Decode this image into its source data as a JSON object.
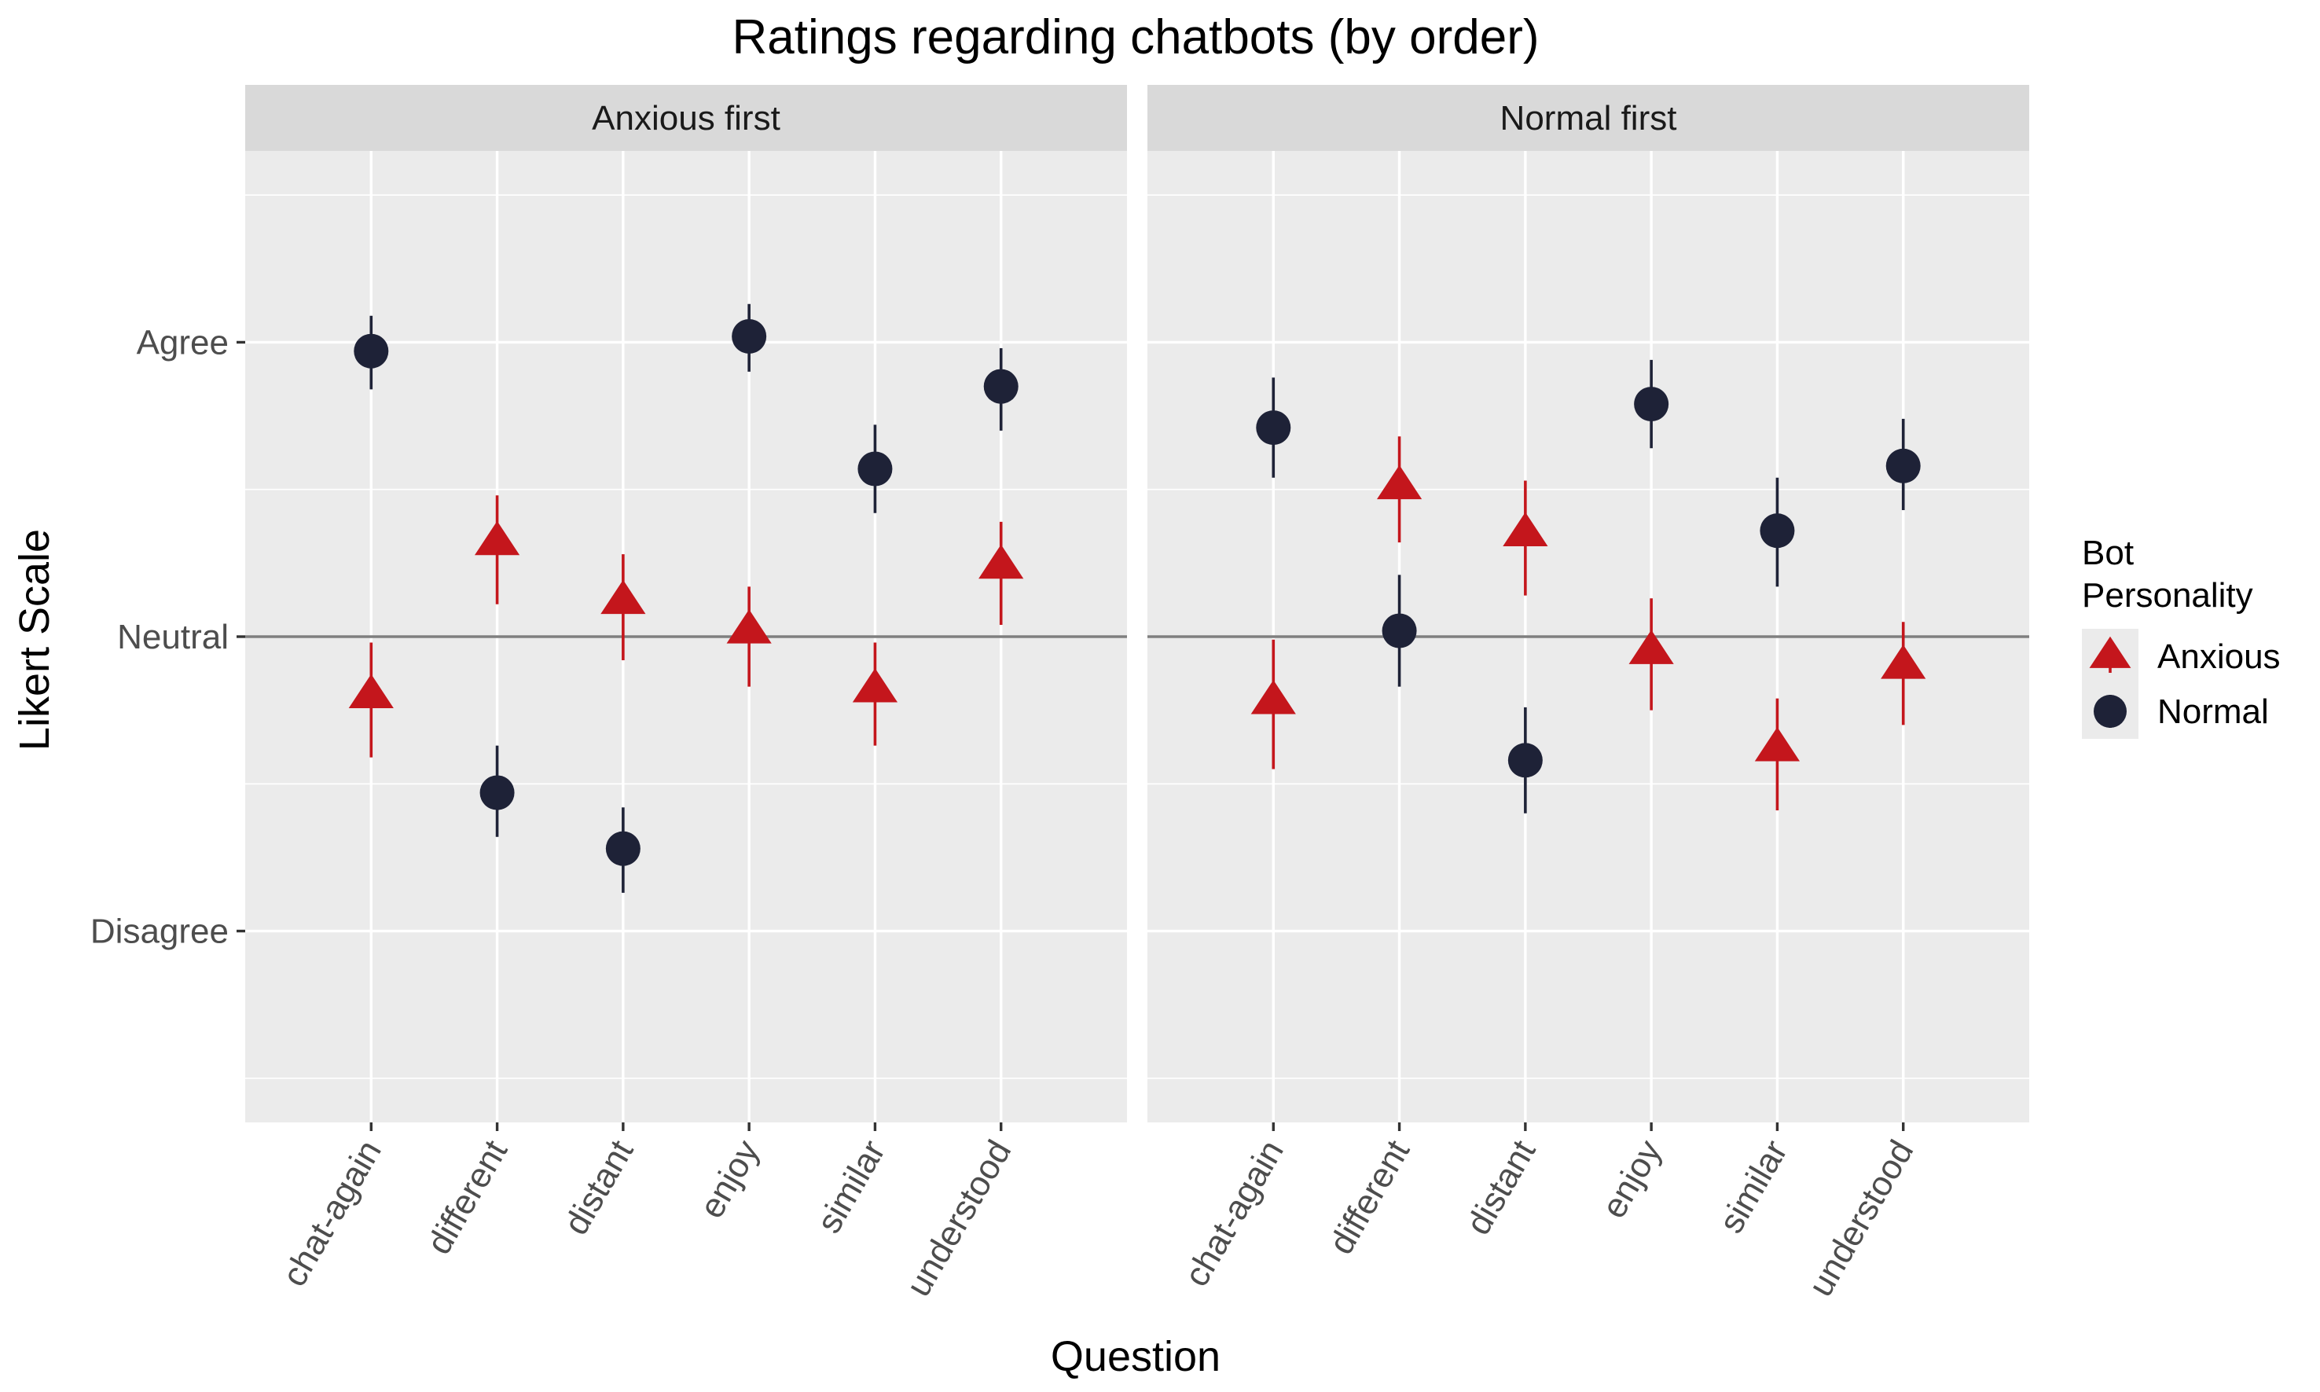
{
  "chart_data": {
    "type": "scatter",
    "title": "Ratings regarding chatbots (by order)",
    "xlabel": "Question",
    "ylabel": "Likert Scale",
    "categories": [
      "chat-again",
      "different",
      "distant",
      "enjoy",
      "similar",
      "understood"
    ],
    "ylim": [
      -1.65,
      1.65
    ],
    "y_ticks": [
      {
        "value": 1,
        "label": "Agree"
      },
      {
        "value": 0,
        "label": "Neutral"
      },
      {
        "value": -1,
        "label": "Disagree"
      }
    ],
    "reference_line": 0,
    "legend": {
      "title_lines": [
        "Bot",
        "Personality"
      ],
      "placement": "right"
    },
    "colors": {
      "Anxious": "#c4161c",
      "Normal": "#1e2237"
    },
    "panels": [
      {
        "name": "Anxious first",
        "series": [
          {
            "name": "Anxious",
            "shape": "triangle",
            "values": [
              -0.2,
              0.32,
              0.12,
              0.02,
              -0.18,
              0.24
            ],
            "lower": [
              -0.41,
              0.11,
              -0.08,
              -0.17,
              -0.37,
              0.04
            ],
            "upper": [
              -0.02,
              0.48,
              0.28,
              0.17,
              -0.02,
              0.39
            ]
          },
          {
            "name": "Normal",
            "shape": "circle",
            "values": [
              0.97,
              -0.53,
              -0.72,
              1.02,
              0.57,
              0.85
            ],
            "lower": [
              0.84,
              -0.68,
              -0.87,
              0.9,
              0.42,
              0.7
            ],
            "upper": [
              1.09,
              -0.37,
              -0.58,
              1.13,
              0.72,
              0.98
            ]
          }
        ]
      },
      {
        "name": "Normal first",
        "series": [
          {
            "name": "Anxious",
            "shape": "triangle",
            "values": [
              -0.22,
              0.51,
              0.35,
              -0.05,
              -0.38,
              -0.1
            ],
            "lower": [
              -0.45,
              0.32,
              0.14,
              -0.25,
              -0.59,
              -0.3
            ],
            "upper": [
              -0.01,
              0.68,
              0.53,
              0.13,
              -0.21,
              0.05
            ]
          },
          {
            "name": "Normal",
            "shape": "circle",
            "values": [
              0.71,
              0.02,
              -0.42,
              0.79,
              0.36,
              0.58
            ],
            "lower": [
              0.54,
              -0.17,
              -0.6,
              0.64,
              0.17,
              0.43
            ],
            "upper": [
              0.88,
              0.21,
              -0.24,
              0.94,
              0.54,
              0.74
            ]
          }
        ]
      }
    ]
  }
}
